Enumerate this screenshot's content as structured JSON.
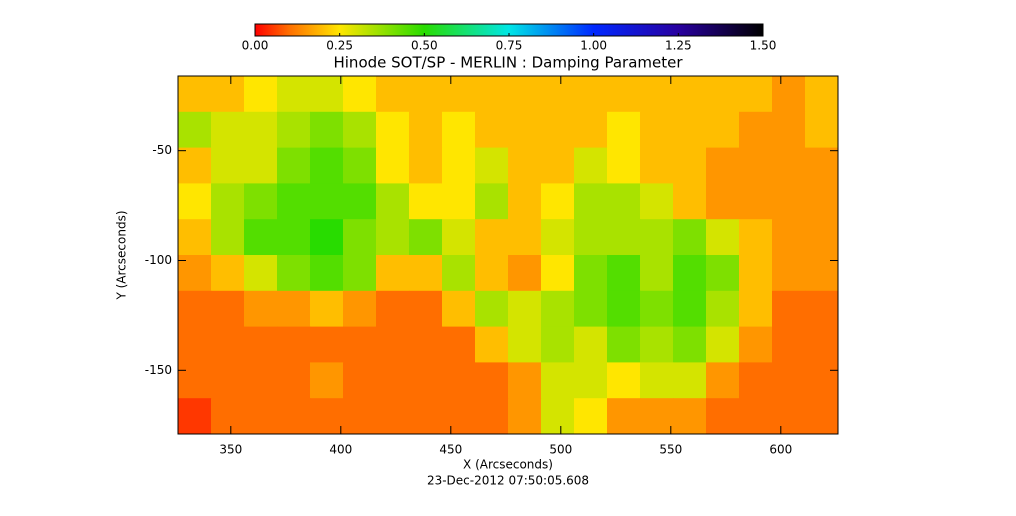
{
  "chart_data": {
    "type": "heatmap",
    "title": "Hinode SOT/SP - MERLIN : Damping Parameter",
    "xlabel": "X (Arcseconds)",
    "ylabel": "Y (Arcseconds)",
    "footer": "23-Dec-2012 07:50:05.608",
    "xlim": [
      326,
      626
    ],
    "ylim": [
      -179,
      -16
    ],
    "xticks": [
      350,
      400,
      450,
      500,
      550,
      600
    ],
    "yticks": [
      -50,
      -100,
      -150
    ],
    "clim": [
      0,
      1.5
    ],
    "cticks": [
      {
        "value": 0,
        "label": "0.00"
      },
      {
        "value": 0.25,
        "label": "0.25"
      },
      {
        "value": 0.5,
        "label": "0.50"
      },
      {
        "value": 0.75,
        "label": "0.75"
      },
      {
        "value": 1,
        "label": "1.00"
      },
      {
        "value": 1.25,
        "label": "1.25"
      },
      {
        "value": 1.5,
        "label": "1.50"
      }
    ],
    "z": [
      [
        0.2,
        0.2,
        0.25,
        0.3,
        0.3,
        0.25,
        0.2,
        0.2,
        0.2,
        0.2,
        0.2,
        0.2,
        0.2,
        0.2,
        0.2,
        0.2,
        0.2,
        0.2,
        0.15,
        0.2
      ],
      [
        0.35,
        0.3,
        0.3,
        0.35,
        0.4,
        0.35,
        0.25,
        0.2,
        0.25,
        0.2,
        0.2,
        0.2,
        0.2,
        0.25,
        0.2,
        0.2,
        0.2,
        0.15,
        0.15,
        0.2
      ],
      [
        0.2,
        0.3,
        0.3,
        0.4,
        0.45,
        0.4,
        0.25,
        0.2,
        0.25,
        0.3,
        0.2,
        0.2,
        0.3,
        0.25,
        0.2,
        0.2,
        0.15,
        0.15,
        0.15,
        0.15
      ],
      [
        0.25,
        0.35,
        0.4,
        0.45,
        0.45,
        0.45,
        0.35,
        0.25,
        0.25,
        0.35,
        0.2,
        0.25,
        0.35,
        0.35,
        0.3,
        0.2,
        0.15,
        0.15,
        0.15,
        0.15
      ],
      [
        0.2,
        0.35,
        0.45,
        0.45,
        0.5,
        0.4,
        0.35,
        0.4,
        0.3,
        0.2,
        0.2,
        0.3,
        0.35,
        0.35,
        0.35,
        0.4,
        0.3,
        0.2,
        0.15,
        0.15
      ],
      [
        0.15,
        0.2,
        0.3,
        0.4,
        0.45,
        0.4,
        0.2,
        0.2,
        0.35,
        0.2,
        0.15,
        0.25,
        0.4,
        0.45,
        0.35,
        0.45,
        0.4,
        0.2,
        0.15,
        0.15
      ],
      [
        0.1,
        0.1,
        0.15,
        0.15,
        0.2,
        0.15,
        0.1,
        0.1,
        0.2,
        0.35,
        0.3,
        0.35,
        0.4,
        0.45,
        0.4,
        0.45,
        0.35,
        0.2,
        0.1,
        0.1
      ],
      [
        0.1,
        0.1,
        0.1,
        0.1,
        0.1,
        0.1,
        0.1,
        0.1,
        0.1,
        0.2,
        0.3,
        0.35,
        0.3,
        0.4,
        0.35,
        0.4,
        0.3,
        0.15,
        0.1,
        0.1
      ],
      [
        0.1,
        0.1,
        0.1,
        0.1,
        0.15,
        0.1,
        0.1,
        0.1,
        0.1,
        0.1,
        0.15,
        0.3,
        0.3,
        0.25,
        0.3,
        0.3,
        0.15,
        0.1,
        0.1,
        0.1
      ],
      [
        0.05,
        0.1,
        0.1,
        0.1,
        0.1,
        0.1,
        0.1,
        0.1,
        0.1,
        0.1,
        0.15,
        0.3,
        0.25,
        0.15,
        0.15,
        0.15,
        0.1,
        0.1,
        0.1,
        0.1
      ]
    ]
  }
}
